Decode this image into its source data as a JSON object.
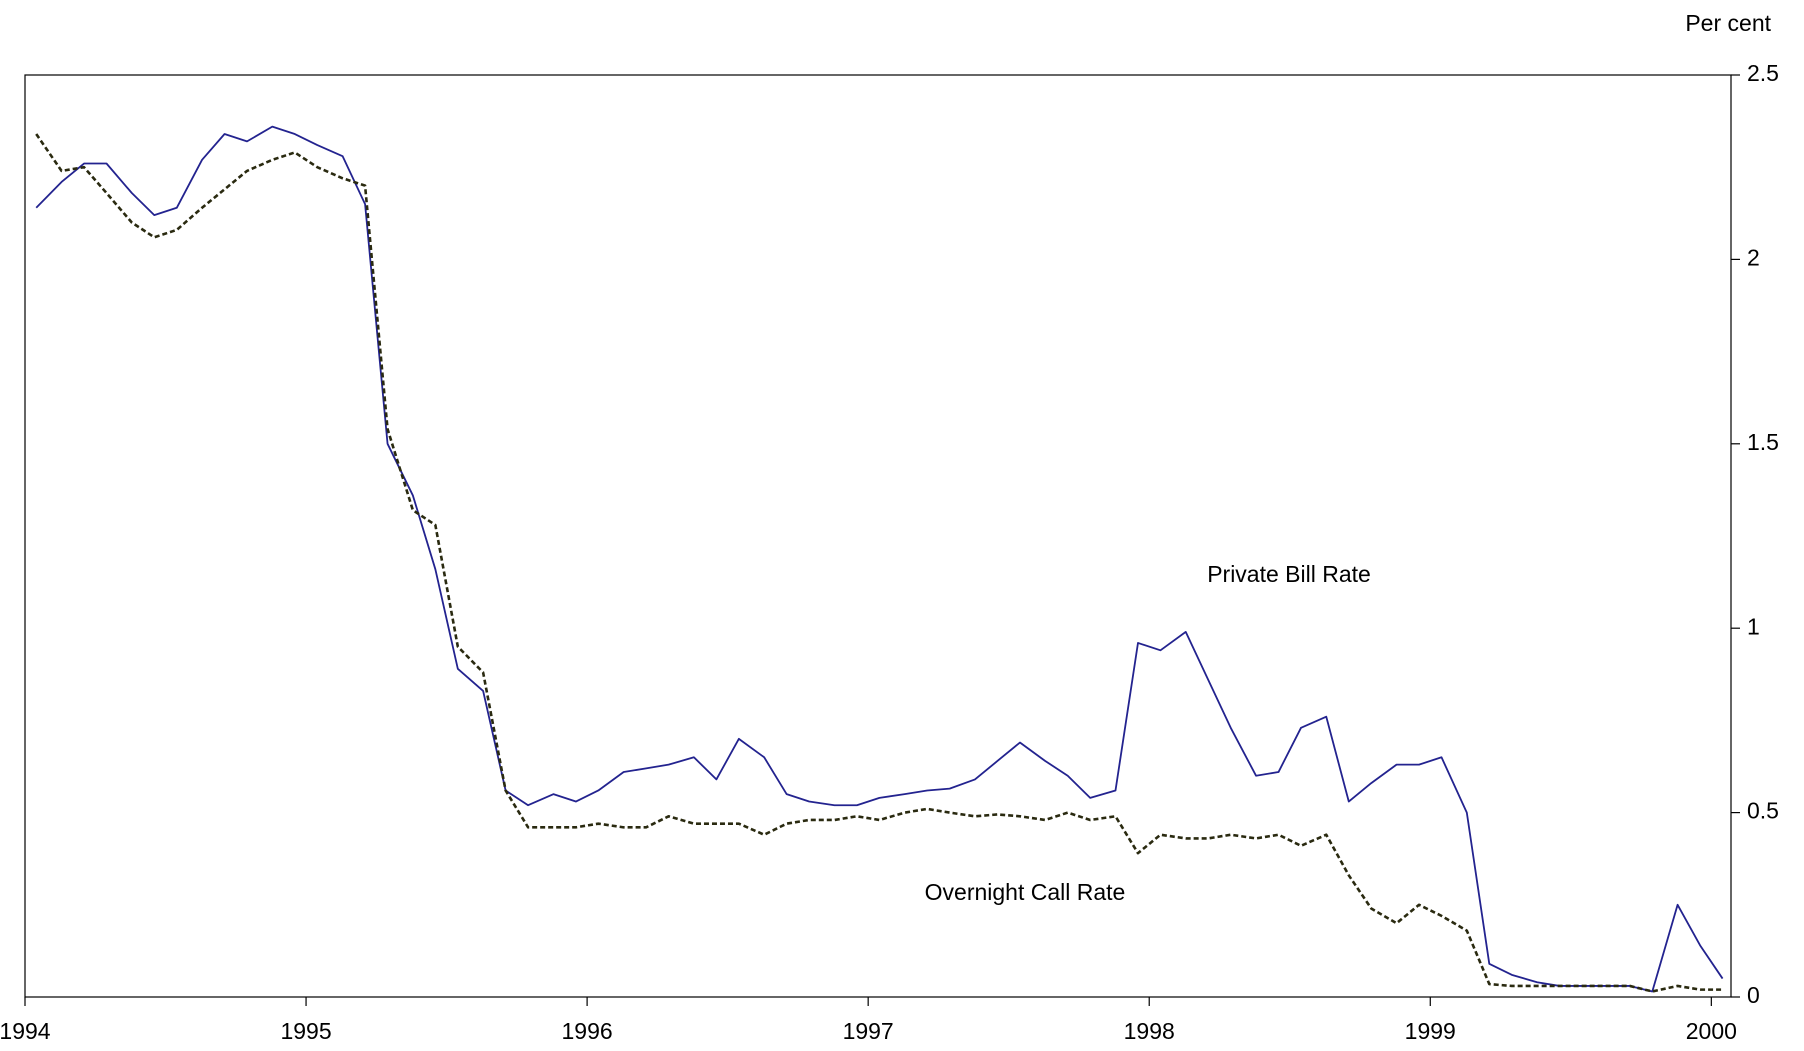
{
  "chart_data": {
    "type": "line",
    "y_label": "Per cent",
    "x": [
      1994.04,
      1994.13,
      1994.21,
      1994.29,
      1994.38,
      1994.46,
      1994.54,
      1994.63,
      1994.71,
      1994.79,
      1994.88,
      1994.96,
      1995.04,
      1995.13,
      1995.21,
      1995.29,
      1995.38,
      1995.46,
      1995.54,
      1995.63,
      1995.71,
      1995.79,
      1995.88,
      1995.96,
      1996.04,
      1996.13,
      1996.21,
      1996.29,
      1996.38,
      1996.46,
      1996.54,
      1996.63,
      1996.71,
      1996.79,
      1996.88,
      1996.96,
      1997.04,
      1997.13,
      1997.21,
      1997.29,
      1997.38,
      1997.46,
      1997.54,
      1997.63,
      1997.71,
      1997.79,
      1997.88,
      1997.96,
      1998.04,
      1998.13,
      1998.21,
      1998.29,
      1998.38,
      1998.46,
      1998.54,
      1998.63,
      1998.71,
      1998.79,
      1998.88,
      1998.96,
      1999.04,
      1999.13,
      1999.21,
      1999.29,
      1999.38,
      1999.46,
      1999.54,
      1999.63,
      1999.71,
      1999.79,
      1999.88,
      1999.96,
      2000.04
    ],
    "series": [
      {
        "name": "Private Bill Rate",
        "color": "#23238f",
        "dashed": false,
        "values": [
          2.14,
          2.21,
          2.26,
          2.26,
          2.18,
          2.12,
          2.14,
          2.27,
          2.34,
          2.32,
          2.36,
          2.34,
          2.31,
          2.28,
          2.15,
          1.5,
          1.36,
          1.16,
          0.89,
          0.83,
          0.56,
          0.52,
          0.55,
          0.53,
          0.56,
          0.61,
          0.62,
          0.63,
          0.65,
          0.59,
          0.7,
          0.65,
          0.55,
          0.53,
          0.52,
          0.52,
          0.54,
          0.55,
          0.56,
          0.565,
          0.59,
          0.64,
          0.69,
          0.64,
          0.6,
          0.54,
          0.56,
          0.96,
          0.94,
          0.99,
          0.86,
          0.73,
          0.6,
          0.61,
          0.73,
          0.76,
          0.53,
          0.58,
          0.63,
          0.63,
          0.65,
          0.5,
          0.09,
          0.06,
          0.04,
          0.03,
          0.03,
          0.03,
          0.03,
          0.015,
          0.25,
          0.14,
          0.05
        ]
      },
      {
        "name": "Overnight Call Rate",
        "color": "#2a2a10",
        "dashed": true,
        "values": [
          2.34,
          2.24,
          2.25,
          2.18,
          2.1,
          2.06,
          2.08,
          2.14,
          2.19,
          2.24,
          2.27,
          2.29,
          2.25,
          2.22,
          2.2,
          1.54,
          1.32,
          1.28,
          0.95,
          0.88,
          0.56,
          0.46,
          0.46,
          0.46,
          0.47,
          0.46,
          0.46,
          0.49,
          0.47,
          0.47,
          0.47,
          0.44,
          0.47,
          0.48,
          0.48,
          0.49,
          0.48,
          0.5,
          0.51,
          0.5,
          0.49,
          0.495,
          0.49,
          0.48,
          0.5,
          0.48,
          0.49,
          0.39,
          0.44,
          0.43,
          0.43,
          0.44,
          0.43,
          0.44,
          0.41,
          0.44,
          0.33,
          0.24,
          0.2,
          0.25,
          0.22,
          0.18,
          0.035,
          0.03,
          0.03,
          0.03,
          0.03,
          0.03,
          0.03,
          0.015,
          0.03,
          0.02,
          0.02
        ]
      }
    ],
    "xlim": [
      1994,
      2000.07
    ],
    "xticks": [
      1994,
      1995,
      1996,
      1997,
      1998,
      1999,
      2000
    ],
    "ylim": [
      0,
      2.5
    ],
    "yticks": [
      0,
      0.5,
      1,
      1.5,
      2,
      2.5
    ],
    "y_axis_side": "right",
    "grid": false
  }
}
